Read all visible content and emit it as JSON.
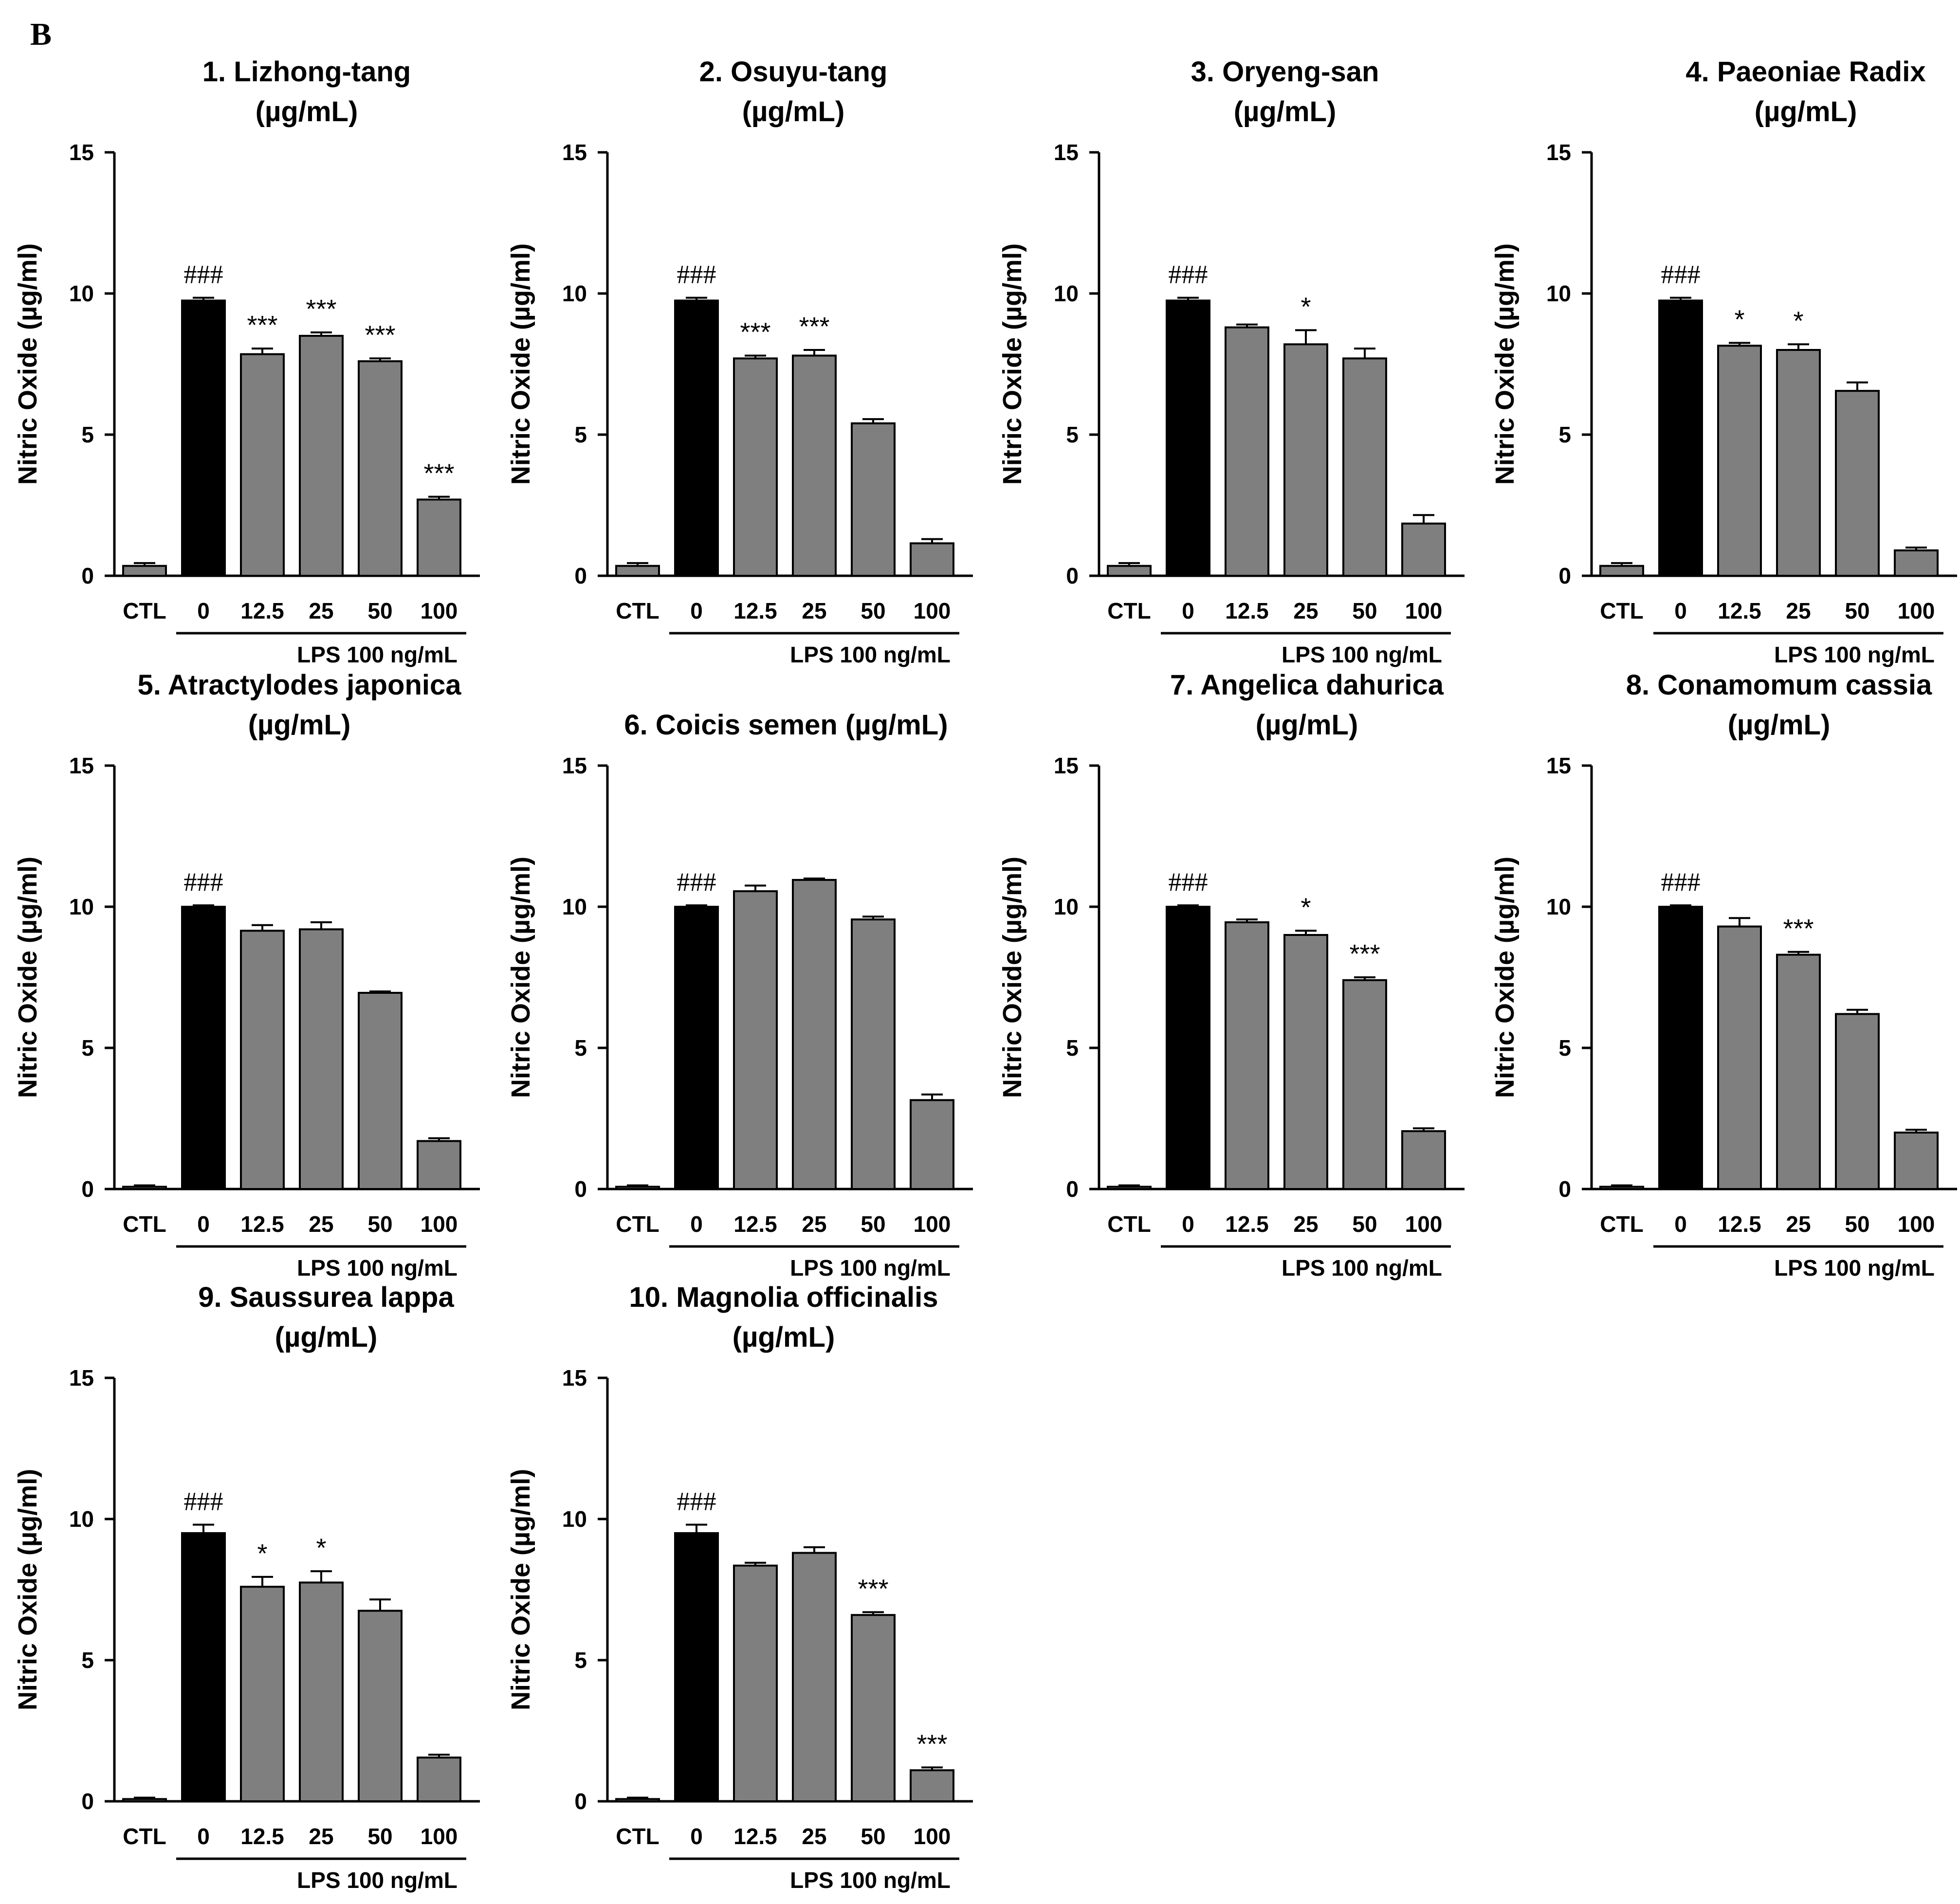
{
  "figure_label": "B",
  "chart_data": [
    {
      "type": "bar",
      "title_lines": [
        "1. Lizhong-tang",
        "(µg/mL)"
      ],
      "ylabel": "Nitric Oxide (µg/ml)",
      "ylim": [
        0,
        15
      ],
      "yticks": [
        "0",
        "5",
        "10",
        "15"
      ],
      "categories": [
        "CTL",
        "0",
        "12.5",
        "25",
        "50",
        "100"
      ],
      "values": [
        0.35,
        9.75,
        7.85,
        8.5,
        7.6,
        2.7
      ],
      "errors": [
        0.1,
        0.1,
        0.2,
        0.12,
        0.1,
        0.1
      ],
      "significance": [
        "",
        "###",
        "***",
        "***",
        "***",
        "***"
      ],
      "treatment_label": "LPS 100 ng/mL"
    },
    {
      "type": "bar",
      "title_lines": [
        "2. Osuyu-tang",
        "(µg/mL)"
      ],
      "ylabel": "Nitric Oxide (µg/ml)",
      "ylim": [
        0,
        15
      ],
      "yticks": [
        "0",
        "5",
        "10",
        "15"
      ],
      "categories": [
        "CTL",
        "0",
        "12.5",
        "25",
        "50",
        "100"
      ],
      "values": [
        0.35,
        9.75,
        7.7,
        7.8,
        5.4,
        1.15
      ],
      "errors": [
        0.1,
        0.1,
        0.1,
        0.2,
        0.15,
        0.15
      ],
      "significance": [
        "",
        "###",
        "***",
        "***",
        "",
        ""
      ],
      "treatment_label": "LPS 100 ng/mL"
    },
    {
      "type": "bar",
      "title_lines": [
        "3. Oryeng-san",
        "(µg/mL)"
      ],
      "ylabel": "Nitric Oxide (µg/ml)",
      "ylim": [
        0,
        15
      ],
      "yticks": [
        "0",
        "5",
        "10",
        "15"
      ],
      "categories": [
        "CTL",
        "0",
        "12.5",
        "25",
        "50",
        "100"
      ],
      "values": [
        0.35,
        9.75,
        8.8,
        8.2,
        7.7,
        1.85
      ],
      "errors": [
        0.1,
        0.1,
        0.1,
        0.5,
        0.35,
        0.3
      ],
      "significance": [
        "",
        "###",
        "",
        "*",
        "",
        ""
      ],
      "treatment_label": "LPS 100 ng/mL"
    },
    {
      "type": "bar",
      "title_lines": [
        "4. Paeoniae Radix",
        "(µg/mL)"
      ],
      "ylabel": "Nitric Oxide (µg/ml)",
      "ylim": [
        0,
        15
      ],
      "yticks": [
        "0",
        "5",
        "10",
        "15"
      ],
      "categories": [
        "CTL",
        "0",
        "12.5",
        "25",
        "50",
        "100"
      ],
      "values": [
        0.35,
        9.75,
        8.15,
        8.0,
        6.55,
        0.9
      ],
      "errors": [
        0.1,
        0.1,
        0.1,
        0.2,
        0.3,
        0.1
      ],
      "significance": [
        "",
        "###",
        "*",
        "*",
        "",
        ""
      ],
      "treatment_label": "LPS 100 ng/mL"
    },
    {
      "type": "bar",
      "title_lines": [
        "5. Atractylodes japonica",
        "(µg/mL)"
      ],
      "ylabel": "Nitric Oxide (µg/ml)",
      "ylim": [
        0,
        15
      ],
      "yticks": [
        "0",
        "5",
        "10",
        "15"
      ],
      "categories": [
        "CTL",
        "0",
        "12.5",
        "25",
        "50",
        "100"
      ],
      "values": [
        0.08,
        10.0,
        9.15,
        9.2,
        6.95,
        1.7
      ],
      "errors": [
        0.05,
        0.05,
        0.2,
        0.25,
        0.05,
        0.1
      ],
      "significance": [
        "",
        "###",
        "",
        "",
        "",
        ""
      ],
      "treatment_label": "LPS 100 ng/mL"
    },
    {
      "type": "bar",
      "title_lines": [
        "6. Coicis semen (µg/mL)"
      ],
      "ylabel": "Nitric Oxide (µg/ml)",
      "ylim": [
        0,
        15
      ],
      "yticks": [
        "0",
        "5",
        "10",
        "15"
      ],
      "categories": [
        "CTL",
        "0",
        "12.5",
        "25",
        "50",
        "100"
      ],
      "values": [
        0.08,
        10.0,
        10.55,
        10.95,
        9.55,
        3.15
      ],
      "errors": [
        0.05,
        0.05,
        0.2,
        0.05,
        0.1,
        0.2
      ],
      "significance": [
        "",
        "###",
        "",
        "",
        "",
        ""
      ],
      "treatment_label": "LPS 100 ng/mL"
    },
    {
      "type": "bar",
      "title_lines": [
        "7. Angelica dahurica",
        "(µg/mL)"
      ],
      "ylabel": "Nitric Oxide (µg/ml)",
      "ylim": [
        0,
        15
      ],
      "yticks": [
        "0",
        "5",
        "10",
        "15"
      ],
      "categories": [
        "CTL",
        "0",
        "12.5",
        "25",
        "50",
        "100"
      ],
      "values": [
        0.08,
        10.0,
        9.45,
        9.0,
        7.4,
        2.05
      ],
      "errors": [
        0.05,
        0.05,
        0.1,
        0.15,
        0.1,
        0.1
      ],
      "significance": [
        "",
        "###",
        "",
        "*",
        "***",
        ""
      ],
      "treatment_label": "LPS 100 ng/mL"
    },
    {
      "type": "bar",
      "title_lines": [
        "8. Conamomum  cassia",
        "(µg/mL)"
      ],
      "ylabel": "Nitric Oxide (µg/ml)",
      "ylim": [
        0,
        15
      ],
      "yticks": [
        "0",
        "5",
        "10",
        "15"
      ],
      "categories": [
        "CTL",
        "0",
        "12.5",
        "25",
        "50",
        "100"
      ],
      "values": [
        0.08,
        10.0,
        9.3,
        8.3,
        6.2,
        2.0
      ],
      "errors": [
        0.05,
        0.05,
        0.3,
        0.1,
        0.15,
        0.1
      ],
      "significance": [
        "",
        "###",
        "",
        "***",
        "",
        ""
      ],
      "treatment_label": "LPS 100 ng/mL"
    },
    {
      "type": "bar",
      "title_lines": [
        "9. Saussurea lappa",
        "(µg/mL)"
      ],
      "ylabel": "Nitric Oxide (µg/ml)",
      "ylim": [
        0,
        15
      ],
      "yticks": [
        "0",
        "5",
        "10",
        "15"
      ],
      "categories": [
        "CTL",
        "0",
        "12.5",
        "25",
        "50",
        "100"
      ],
      "values": [
        0.08,
        9.5,
        7.6,
        7.75,
        6.75,
        1.55
      ],
      "errors": [
        0.05,
        0.3,
        0.35,
        0.4,
        0.4,
        0.1
      ],
      "significance": [
        "",
        "###",
        "*",
        "*",
        "",
        ""
      ],
      "treatment_label": "LPS 100 ng/mL"
    },
    {
      "type": "bar",
      "title_lines": [
        "10. Magnolia officinalis",
        "(µg/mL)"
      ],
      "ylabel": "Nitric Oxide (µg/ml)",
      "ylim": [
        0,
        15
      ],
      "yticks": [
        "0",
        "5",
        "10",
        "15"
      ],
      "categories": [
        "CTL",
        "0",
        "12.5",
        "25",
        "50",
        "100"
      ],
      "values": [
        0.08,
        9.5,
        8.35,
        8.8,
        6.6,
        1.1
      ],
      "errors": [
        0.05,
        0.3,
        0.1,
        0.2,
        0.1,
        0.1
      ],
      "significance": [
        "",
        "###",
        "",
        "",
        "***",
        "***"
      ],
      "treatment_label": "LPS 100 ng/mL"
    }
  ]
}
